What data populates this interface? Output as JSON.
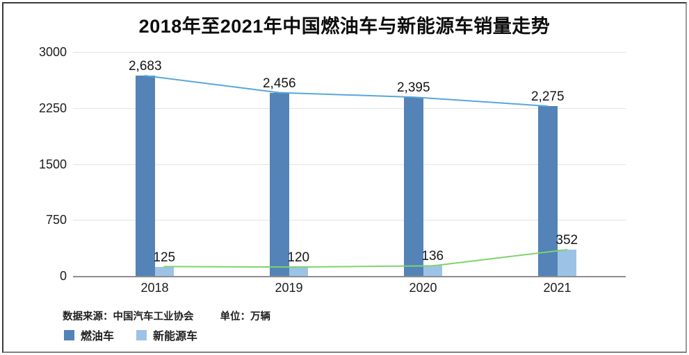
{
  "title": "2018年至2021年中国燃油车与新能源车销量走势",
  "chart_data": {
    "type": "bar",
    "subtype": "grouped bars with trend lines",
    "categories": [
      "2018",
      "2019",
      "2020",
      "2021"
    ],
    "series": [
      {
        "key": "fuel",
        "name": "燃油车",
        "values": [
          2683,
          2456,
          2395,
          2275
        ],
        "bar_color": "#5383B7",
        "line_color": "#57A6DC"
      },
      {
        "key": "nev",
        "name": "新能源车",
        "values": [
          125,
          120,
          136,
          352
        ],
        "bar_color": "#9CC3E6",
        "line_color": "#7ED36B"
      }
    ],
    "ylim": [
      0,
      3000
    ],
    "y_ticks": [
      0,
      750,
      1500,
      2250,
      3000
    ],
    "grid": "horizontal",
    "value_labels": true,
    "legend_position": "bottom-left",
    "axis_color": "#8d8d8d",
    "gridline_color": "#e3e3e3"
  },
  "footer": {
    "source": "数据来源：中国汽车工业协会",
    "unit": "单位：万辆"
  },
  "legend": [
    {
      "label": "燃油车",
      "color": "#5383B7"
    },
    {
      "label": "新能源车",
      "color": "#9CC3E6"
    }
  ]
}
